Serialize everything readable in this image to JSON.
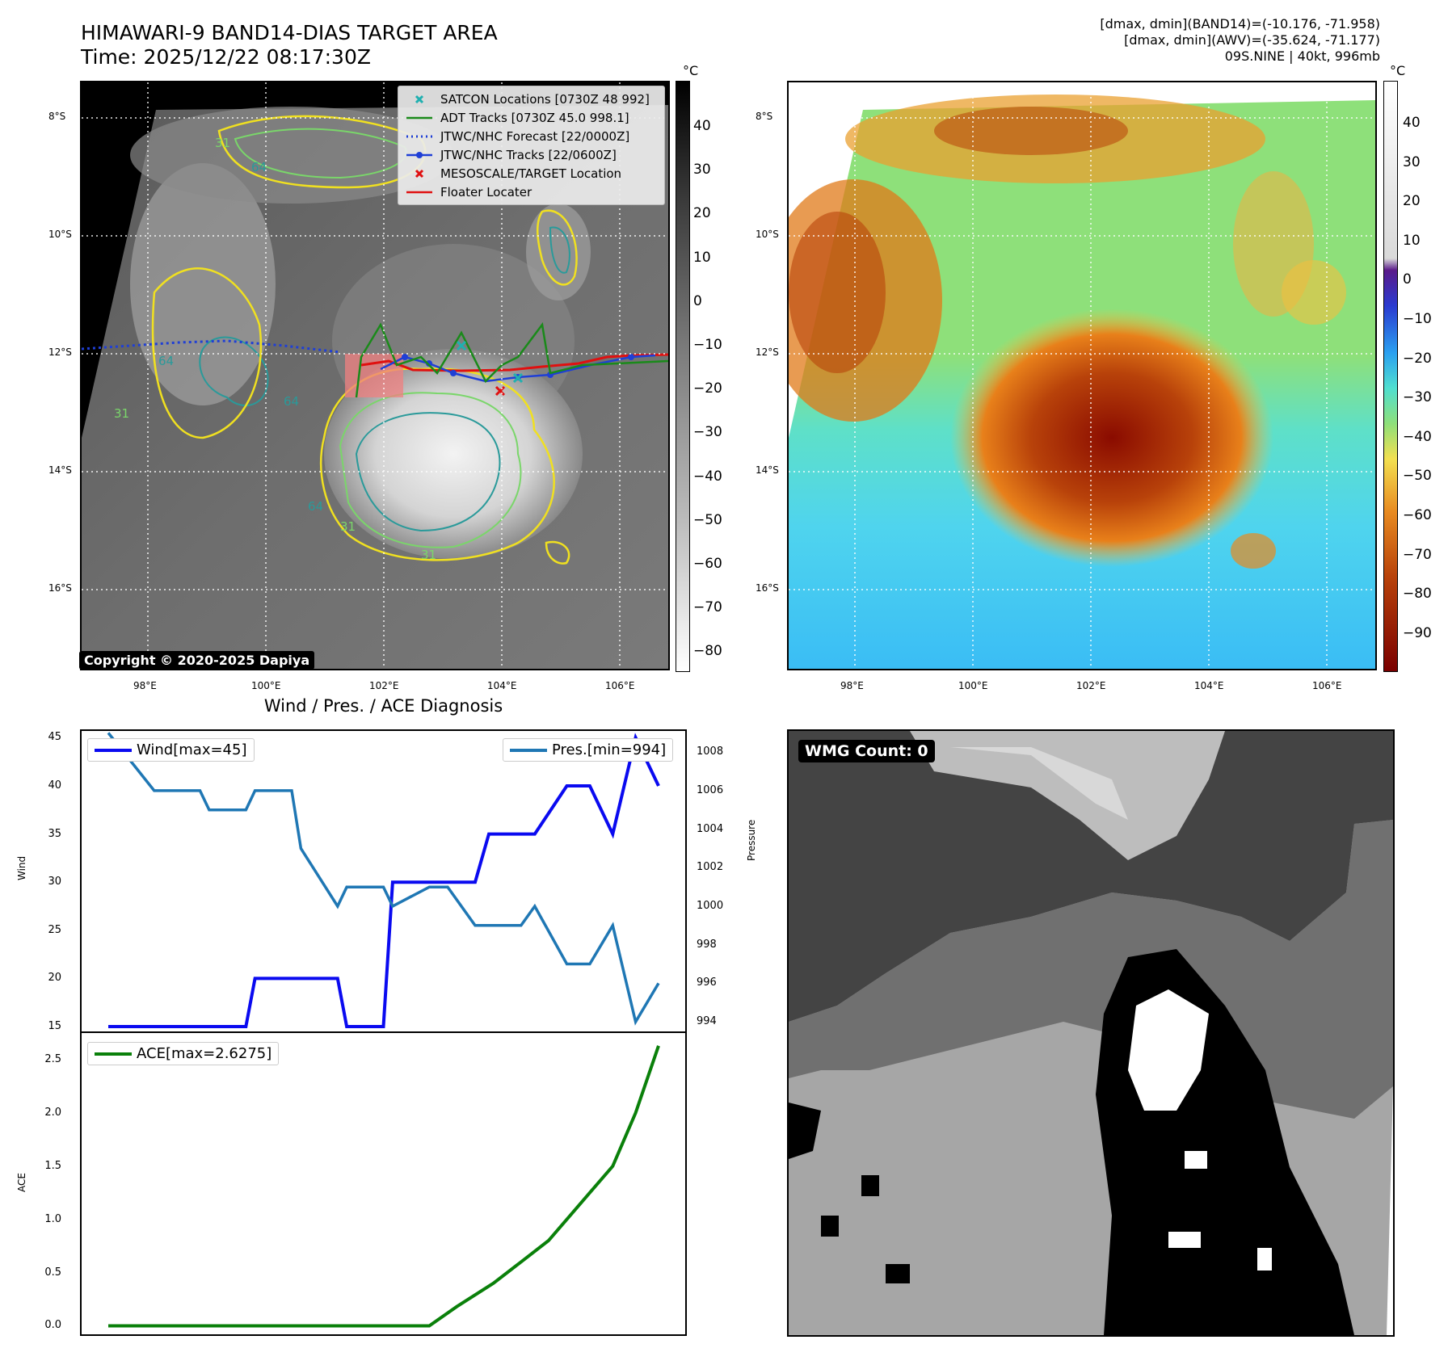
{
  "header": {
    "title_line1": "HIMAWARI-9 BAND14-DIAS TARGET AREA",
    "title_line2": "Time: 2025/12/22 08:17:30Z",
    "stats_line1": "[dmax, dmin](BAND14)=(-10.176, -71.958)",
    "stats_line2": "[dmax, dmin](AWV)=(-35.624, -71.177)",
    "stats_line3": "09S.NINE | 40kt, 996mb"
  },
  "map_axes": {
    "lat_labels": [
      "8°S",
      "10°S",
      "12°S",
      "14°S",
      "16°S"
    ],
    "lon_labels": [
      "98°E",
      "100°E",
      "102°E",
      "104°E",
      "106°E"
    ]
  },
  "left_map": {
    "copyright": "Copyright © 2020-2025 Dapiya",
    "colorbar_unit": "°C",
    "colorbar_ticks": [
      "40",
      "30",
      "20",
      "10",
      "0",
      "−10",
      "−20",
      "−30",
      "−40",
      "−50",
      "−60",
      "−70",
      "−80"
    ],
    "contour_labels": [
      "64",
      "31",
      "64",
      "31",
      "64",
      "31",
      "64",
      "31"
    ],
    "legend": [
      {
        "label": "SATCON Locations [0730Z 48 992]",
        "color": "#20b0b0",
        "symbol": "x-cyan"
      },
      {
        "label": "ADT Tracks [0730Z 45.0 998.1]",
        "color": "#1a8a1a",
        "symbol": "line"
      },
      {
        "label": "JTWC/NHC Forecast [22/0000Z]",
        "color": "#1f3fd6",
        "symbol": "dotted"
      },
      {
        "label": "JTWC/NHC Tracks [22/0600Z]",
        "color": "#1f3fd6",
        "symbol": "line-dot"
      },
      {
        "label": "MESOSCALE/TARGET Location",
        "color": "#e01010",
        "symbol": "x-red"
      },
      {
        "label": "Floater Locater",
        "color": "#e01010",
        "symbol": "line"
      }
    ]
  },
  "right_map": {
    "colorbar_unit": "°C",
    "colorbar_ticks": [
      "40",
      "30",
      "20",
      "10",
      "0",
      "−10",
      "−20",
      "−30",
      "−40",
      "−50",
      "−60",
      "−70",
      "−80",
      "−90"
    ]
  },
  "bottom_right": {
    "wmg_label": "WMG Count: 0"
  },
  "chart_data": [
    {
      "type": "line",
      "title": "Wind / Pres. / ACE Diagnosis",
      "ylabel": "Wind",
      "y2label": "Pressure",
      "ylim": [
        14.5,
        45.7
      ],
      "y2lim": [
        993.5,
        1009.1
      ],
      "yticks": [
        15,
        20,
        25,
        30,
        35,
        40,
        45
      ],
      "y2ticks": [
        994,
        996,
        998,
        1000,
        1002,
        1004,
        1006,
        1008
      ],
      "series": [
        {
          "name": "Wind[max=45]",
          "axis": "left",
          "color": "#0a0af0",
          "x": [
            0,
            1,
            1.2,
            2,
            2.2,
            3,
            3.2,
            4,
            4.2,
            5,
            5.2,
            6,
            6.2,
            7,
            7.4,
            8,
            8.3,
            9,
            9.3,
            10,
            10.5,
            11,
            11.5,
            12
          ],
          "values": [
            15,
            15,
            15,
            15,
            15,
            15,
            20,
            20,
            20,
            20,
            15,
            15,
            30,
            30,
            30,
            30,
            35,
            35,
            35,
            40,
            40,
            35,
            45,
            40
          ]
        },
        {
          "name": "Pres.[min=994]",
          "axis": "right",
          "color": "#1f77b4",
          "x": [
            0,
            1,
            1.2,
            2,
            2.2,
            3,
            3.2,
            4,
            4.2,
            5,
            5.2,
            6,
            6.2,
            7,
            7.4,
            8,
            8.3,
            9,
            9.3,
            10,
            10.5,
            11,
            11.5,
            12
          ],
          "values": [
            1009,
            1006,
            1006,
            1006,
            1005,
            1005,
            1006,
            1006,
            1003,
            1000,
            1001,
            1001,
            1000,
            1001,
            1001,
            999,
            999,
            999,
            1000,
            997,
            997,
            999,
            994,
            996
          ]
        }
      ]
    },
    {
      "type": "line",
      "ylabel": "ACE",
      "ylim": [
        -0.08,
        2.75
      ],
      "yticks": [
        0.0,
        0.5,
        1.0,
        1.5,
        2.0,
        2.5
      ],
      "series": [
        {
          "name": "ACE[max=2.6275]",
          "color": "#0a800a",
          "x": [
            0,
            1,
            2,
            3,
            4,
            5,
            5.8,
            6.5,
            7,
            7.6,
            8.4,
            9,
            9.6,
            10.1,
            10.5,
            11,
            11.5,
            12
          ],
          "values": [
            0,
            0,
            0,
            0,
            0,
            0,
            0,
            0,
            0,
            0.18,
            0.4,
            0.6,
            0.8,
            1.05,
            1.25,
            1.5,
            2.0,
            2.63
          ]
        }
      ]
    }
  ]
}
